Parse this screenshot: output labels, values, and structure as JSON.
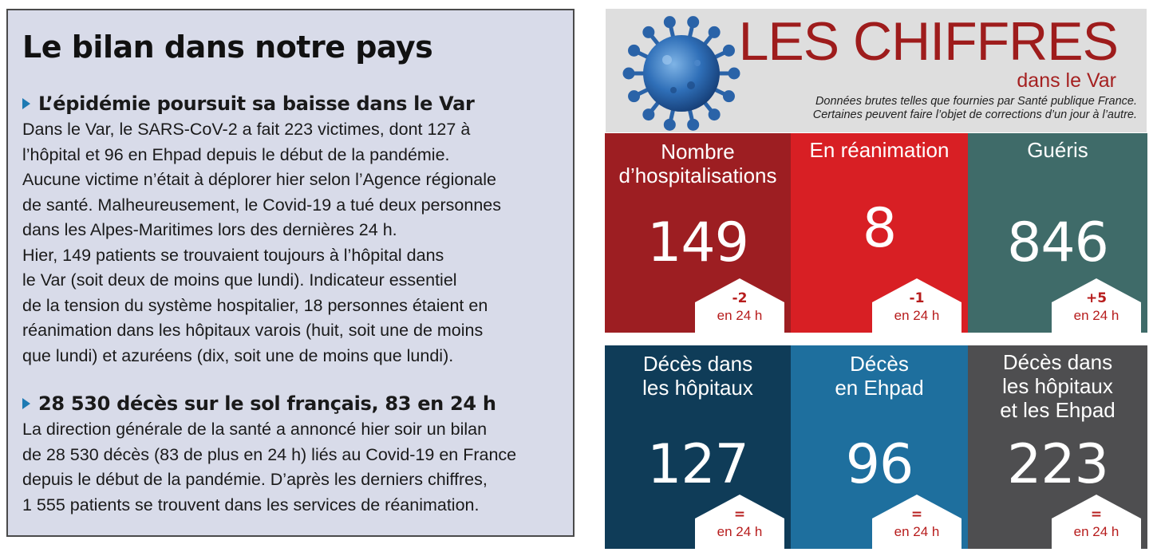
{
  "article": {
    "headline": "Le bilan dans notre pays",
    "sections": [
      {
        "subhead": "L’épidémie poursuit sa baisse dans le Var",
        "lines": [
          "Dans le Var, le SARS-CoV-2 a fait 223 victimes, dont 127 à",
          "l’hôpital et 96 en Ehpad depuis le début de la pandémie.",
          "Aucune victime n’était à déplorer hier selon l’Agence régionale",
          "de santé. Malheureusement, le Covid-19 a tué deux personnes",
          "dans les Alpes-Maritimes lors des dernières 24 h.",
          "Hier, 149 patients se trouvaient toujours à l’hôpital dans",
          "le Var (soit deux de moins que lundi). Indicateur essentiel",
          "de la tension du système hospitalier, 18 personnes étaient en",
          "réanimation dans les hôpitaux varois (huit, soit une de moins",
          "que lundi) et azuréens (dix, soit une de moins que lundi)."
        ]
      },
      {
        "subhead": "28 530 décès sur le sol français, 83 en 24 h",
        "lines": [
          "La direction générale de la santé a annoncé hier soir un bilan",
          "de 28 530 décès (83 de plus en 24 h) liés au Covid-19 en France",
          "depuis le début de la pandémie. D’après les derniers chiffres,",
          "1 555 patients se trouvent dans les services de réanimation."
        ]
      }
    ]
  },
  "infographic": {
    "title": "LES CHIFFRES",
    "subtitle": "dans le Var",
    "note_lines": [
      "Données brutes telles que fournies par Santé publique France.",
      "Certaines peuvent faire l’objet de corrections d’un jour à l’autre."
    ],
    "icon": "coronavirus-icon",
    "tiles": [
      {
        "label_lines": [
          "Nombre",
          "d’hospitalisations"
        ],
        "value": "149",
        "delta": "-2",
        "period": "en 24 h",
        "color": "#9d1e22"
      },
      {
        "label_lines": [
          "En réanimation"
        ],
        "value": "8",
        "delta": "-1",
        "period": "en 24 h",
        "color": "#d81f24"
      },
      {
        "label_lines": [
          "Guéris"
        ],
        "value": "846",
        "delta": "+5",
        "period": "en 24 h",
        "color": "#3f6b69"
      },
      {
        "label_lines": [
          "Décès dans",
          "les hôpitaux"
        ],
        "value": "127",
        "delta": "=",
        "period": "en 24 h",
        "color": "#0f3c58"
      },
      {
        "label_lines": [
          "Décès",
          "en Ehpad"
        ],
        "value": "96",
        "delta": "=",
        "period": "en 24 h",
        "color": "#1e6f9e"
      },
      {
        "label_lines": [
          "Décès dans",
          "les hôpitaux",
          "et les Ehpad"
        ],
        "value": "223",
        "delta": "=",
        "period": "en 24 h",
        "color": "#4e4e50"
      }
    ]
  }
}
